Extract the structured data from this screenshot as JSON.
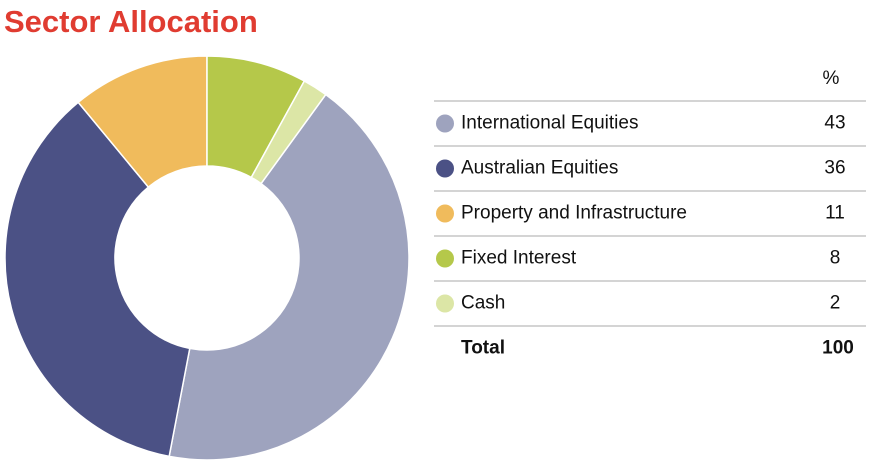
{
  "chart_data": {
    "type": "pie",
    "title": "Sector Allocation",
    "value_header": "%",
    "categories": [
      "International Equities",
      "Australian Equities",
      "Property and Infrastructure",
      "Fixed Interest",
      "Cash"
    ],
    "values": [
      43,
      36,
      11,
      8,
      2
    ],
    "colors": [
      "#9ea3be",
      "#4b5185",
      "#f0bb5c",
      "#b5c84a",
      "#dce6a6"
    ],
    "total_label": "Total",
    "total": 100
  }
}
